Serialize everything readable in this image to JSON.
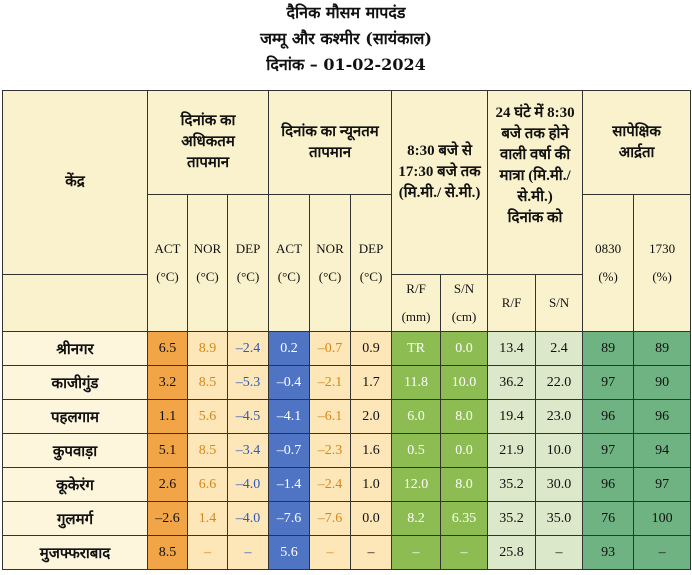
{
  "title": {
    "line1": "दैनिक मौसम मापदंड",
    "line2": "जम्मू और कश्मीर (सायंकाल)",
    "line3": "दिनांक – 01-02-2024"
  },
  "headers": {
    "station": "केंद्र",
    "max_temp": "दिनांक का अधिकतम तापमान",
    "min_temp": "दिनांक का न्यूनतम तापमान",
    "rain_day": "8:30 बजे से 17:30 बजे तक (मि.मी./ से.मी.)",
    "rain_24": "24 घंटे में 8:30 बजे तक होने वाली वर्षा की मात्रा (मि.मी./ से.मी.)",
    "rain_24_date": "दिनांक को",
    "rh": "सापेक्षिक आर्द्रता",
    "act": "ACT",
    "nor": "NOR",
    "dep": "DEP",
    "unit_c": "(°C)",
    "rf": "R/F",
    "sn": "S/N",
    "unit_mm": "(mm)",
    "unit_cm": "(cm)",
    "rh_0830": "0830",
    "rh_1730": "1730",
    "unit_pct": "(%)"
  },
  "rows": [
    {
      "station": "श्रीनगर",
      "max_act": "6.5",
      "max_nor": "8.9",
      "max_dep": "–2.4",
      "min_act": "0.2",
      "min_nor": "–0.7",
      "min_dep": "0.9",
      "rf": "TR",
      "sn": "0.0",
      "rf24": "13.4",
      "sn24": "2.4",
      "rh0830": "89",
      "rh1730": "89"
    },
    {
      "station": "काजीगुंड",
      "max_act": "3.2",
      "max_nor": "8.5",
      "max_dep": "–5.3",
      "min_act": "–0.4",
      "min_nor": "–2.1",
      "min_dep": "1.7",
      "rf": "11.8",
      "sn": "10.0",
      "rf24": "36.2",
      "sn24": "22.0",
      "rh0830": "97",
      "rh1730": "90"
    },
    {
      "station": "पहलगाम",
      "max_act": "1.1",
      "max_nor": "5.6",
      "max_dep": "–4.5",
      "min_act": "–4.1",
      "min_nor": "–6.1",
      "min_dep": "2.0",
      "rf": "6.0",
      "sn": "8.0",
      "rf24": "19.4",
      "sn24": "23.0",
      "rh0830": "96",
      "rh1730": "96"
    },
    {
      "station": "कुपवाड़ा",
      "max_act": "5.1",
      "max_nor": "8.5",
      "max_dep": "–3.4",
      "min_act": "–0.7",
      "min_nor": "–2.3",
      "min_dep": "1.6",
      "rf": "0.5",
      "sn": "0.0",
      "rf24": "21.9",
      "sn24": "10.0",
      "rh0830": "97",
      "rh1730": "94"
    },
    {
      "station": "कूकेरंग",
      "max_act": "2.6",
      "max_nor": "6.6",
      "max_dep": "–4.0",
      "min_act": "–1.4",
      "min_nor": "–2.4",
      "min_dep": "1.0",
      "rf": "12.0",
      "sn": "8.0",
      "rf24": "35.2",
      "sn24": "30.0",
      "rh0830": "96",
      "rh1730": "97"
    },
    {
      "station": "गुलमर्ग",
      "max_act": "–2.6",
      "max_nor": "1.4",
      "max_dep": "–4.0",
      "min_act": "–7.6",
      "min_nor": "–7.6",
      "min_dep": "0.0",
      "rf": "8.2",
      "sn": "6.35",
      "rf24": "35.2",
      "sn24": "35.0",
      "rh0830": "76",
      "rh1730": "100"
    },
    {
      "station": "मुजफ्फराबाद",
      "max_act": "8.5",
      "max_nor": "–",
      "max_dep": "–",
      "min_act": "5.6",
      "min_nor": "–",
      "min_dep": "–",
      "rf": "–",
      "sn": "–",
      "rf24": "25.8",
      "sn24": "–",
      "rh0830": "93",
      "rh1730": "–"
    }
  ]
}
